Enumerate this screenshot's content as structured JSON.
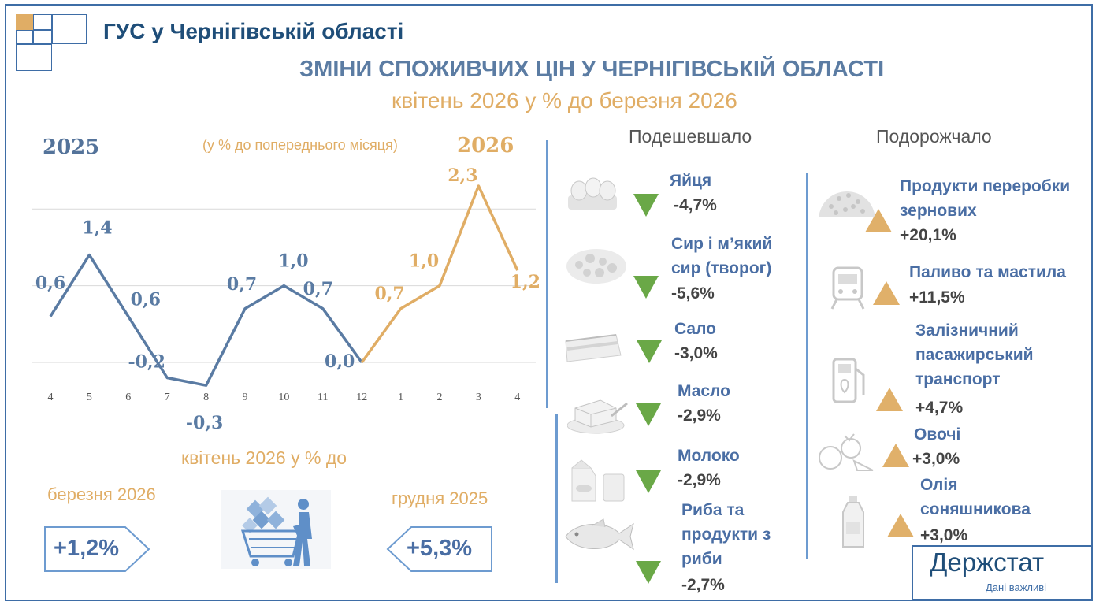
{
  "header": {
    "agency": "ГУС у Чернігівській області",
    "title": "ЗМІНИ СПОЖИВЧИХ ЦІН У ЧЕРНІГІВСЬКІЙ ОБЛАСТІ",
    "subtitle": "квітень 2026 у % до березня 2026"
  },
  "chart_data": {
    "type": "line",
    "year_left": "2025",
    "year_right": "2026",
    "unit_note": "(у % до попереднього місяця)",
    "categories": [
      "4",
      "5",
      "6",
      "7",
      "8",
      "9",
      "10",
      "11",
      "12",
      "1",
      "2",
      "3",
      "4"
    ],
    "series": [
      {
        "values": [
          0.6,
          1.4,
          0.6,
          -0.2,
          -0.3,
          0.7,
          1.0,
          0.7,
          0.0,
          null,
          null,
          null,
          null
        ],
        "color": "#5a7ba3"
      },
      {
        "values": [
          null,
          null,
          null,
          null,
          null,
          null,
          null,
          null,
          0.0,
          0.7,
          1.0,
          2.3,
          1.2
        ],
        "color": "#e0ad65"
      }
    ],
    "labels": [
      "0,6",
      "1,4",
      "0,6",
      "-0,2",
      "-0,3",
      "0,7",
      "1,0",
      "0,7",
      "0,0",
      "0,7",
      "1,0",
      "2,3",
      "1,2"
    ],
    "ylim": [
      -0.5,
      2.5
    ],
    "grid": true
  },
  "comparison": {
    "heading": "квітень 2026 у % до",
    "left_label": "березня 2026",
    "left_value": "+1,2%",
    "right_label": "грудня 2025",
    "right_value": "+5,3%"
  },
  "decreased": {
    "heading": "Подешевшало",
    "items": [
      {
        "name": "Яйця",
        "value": "-4,7%",
        "icon": "eggs-icon"
      },
      {
        "name": "Сир і м’який сир (творог)",
        "value": "-5,6%",
        "icon": "cheese-icon"
      },
      {
        "name": "Сало",
        "value": "-3,0%",
        "icon": "lard-icon"
      },
      {
        "name": "Масло",
        "value": "-2,9%",
        "icon": "butter-icon"
      },
      {
        "name": "Молоко",
        "value": "-2,9%",
        "icon": "milk-icon"
      },
      {
        "name": "Риба та продукти з риби",
        "value": "-2,7%",
        "icon": "fish-icon"
      }
    ]
  },
  "increased": {
    "heading": "Подорожчало",
    "items": [
      {
        "name": "Продукти переробки зернових",
        "value": "+20,1%",
        "icon": "grain-icon"
      },
      {
        "name": "Паливо та мастила",
        "value": "+11,5%",
        "icon": "train-icon"
      },
      {
        "name": "Залізничний пасажирський транспорт",
        "value": "+4,7%",
        "icon": "fuel-pump-icon"
      },
      {
        "name": "Овочі",
        "value": "+3,0%",
        "icon": "vegetables-icon"
      },
      {
        "name": "Олія соняшникова",
        "value": "+3,0%",
        "icon": "oil-bottle-icon"
      }
    ]
  },
  "colors": {
    "accent_blue": "#3e6da6",
    "series_2025": "#5a7ba3",
    "series_2026": "#e0ad65",
    "down": "#6aa847",
    "up": "#e0b06a"
  },
  "logo": {
    "name": "Держстат",
    "tagline": "Дані важливі"
  }
}
